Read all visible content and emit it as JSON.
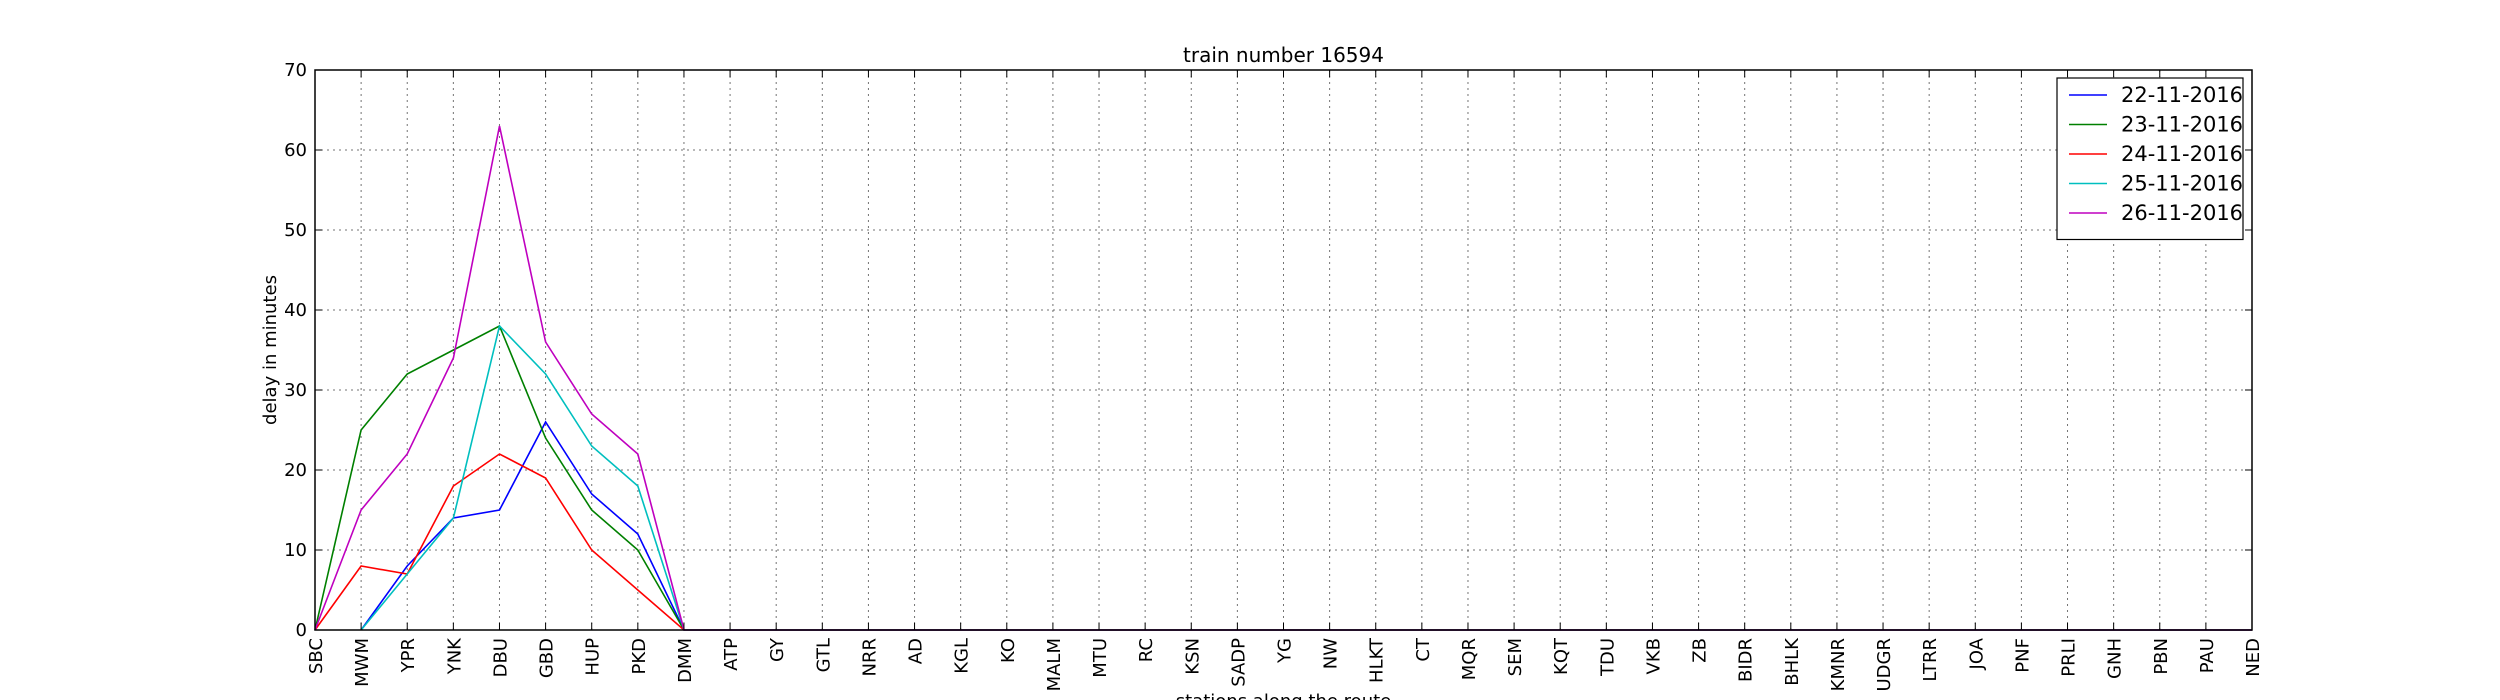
{
  "chart_data": {
    "type": "line",
    "title": "train number 16594",
    "xlabel": "stations along the route",
    "ylabel": "delay in minutes",
    "ylim": [
      0,
      70
    ],
    "yticks": [
      0,
      10,
      20,
      30,
      40,
      50,
      60,
      70
    ],
    "grid": true,
    "legend_position": "top-right",
    "categories": [
      "SBC",
      "MWM",
      "YPR",
      "YNK",
      "DBU",
      "GBD",
      "HUP",
      "PKD",
      "DMM",
      "ATP",
      "GY",
      "GTL",
      "NRR",
      "AD",
      "KGL",
      "KO",
      "MALM",
      "MTU",
      "RC",
      "KSN",
      "SADP",
      "YG",
      "NW",
      "HLKT",
      "CT",
      "MQR",
      "SEM",
      "KQT",
      "TDU",
      "VKB",
      "ZB",
      "BIDR",
      "BHLK",
      "KMNR",
      "UDGR",
      "LTRR",
      "JOA",
      "PNF",
      "PRLI",
      "GNH",
      "PBN",
      "PAU",
      "NED"
    ],
    "series": [
      {
        "name": "22-11-2016",
        "color": "#0000ff",
        "values": [
          null,
          0,
          8,
          14,
          15,
          26,
          17,
          12,
          0,
          0,
          0,
          0,
          0,
          0,
          0,
          0,
          0,
          0,
          0,
          0,
          0,
          0,
          0,
          0,
          0,
          0,
          0,
          0,
          0,
          0,
          0,
          0,
          0,
          0,
          0,
          0,
          0,
          0,
          0,
          0,
          0,
          0,
          0
        ]
      },
      {
        "name": "23-11-2016",
        "color": "#008000",
        "values": [
          0,
          25,
          32,
          35,
          38,
          24,
          15,
          10,
          0,
          0,
          0,
          0,
          0,
          0,
          0,
          0,
          0,
          0,
          0,
          0,
          0,
          0,
          0,
          0,
          0,
          0,
          0,
          0,
          0,
          0,
          0,
          0,
          0,
          0,
          0,
          0,
          0,
          0,
          0,
          0,
          0,
          0,
          0
        ]
      },
      {
        "name": "24-11-2016",
        "color": "#ff0000",
        "values": [
          0,
          8,
          7,
          18,
          22,
          19,
          10,
          5,
          0,
          0,
          0,
          0,
          0,
          0,
          0,
          0,
          0,
          0,
          0,
          0,
          0,
          0,
          0,
          0,
          0,
          0,
          0,
          0,
          0,
          0,
          0,
          0,
          0,
          0,
          0,
          0,
          0,
          0,
          0,
          0,
          0,
          0,
          0
        ]
      },
      {
        "name": "25-11-2016",
        "color": "#00bfbf",
        "values": [
          null,
          0,
          7,
          14,
          38,
          32,
          23,
          18,
          0,
          0,
          0,
          0,
          0,
          0,
          0,
          0,
          0,
          0,
          0,
          0,
          0,
          0,
          0,
          0,
          0,
          0,
          0,
          0,
          0,
          0,
          0,
          0,
          0,
          0,
          0,
          0,
          0,
          0,
          0,
          0,
          0,
          0,
          0
        ]
      },
      {
        "name": "26-11-2016",
        "color": "#bf00bf",
        "values": [
          0,
          15,
          22,
          34,
          63,
          36,
          27,
          22,
          0,
          0,
          0,
          0,
          0,
          0,
          0,
          0,
          0,
          0,
          0,
          0,
          0,
          0,
          0,
          0,
          0,
          0,
          0,
          0,
          0,
          0,
          0,
          0,
          0,
          0,
          0,
          0,
          0,
          0,
          0,
          0,
          0,
          0,
          0
        ]
      }
    ]
  }
}
